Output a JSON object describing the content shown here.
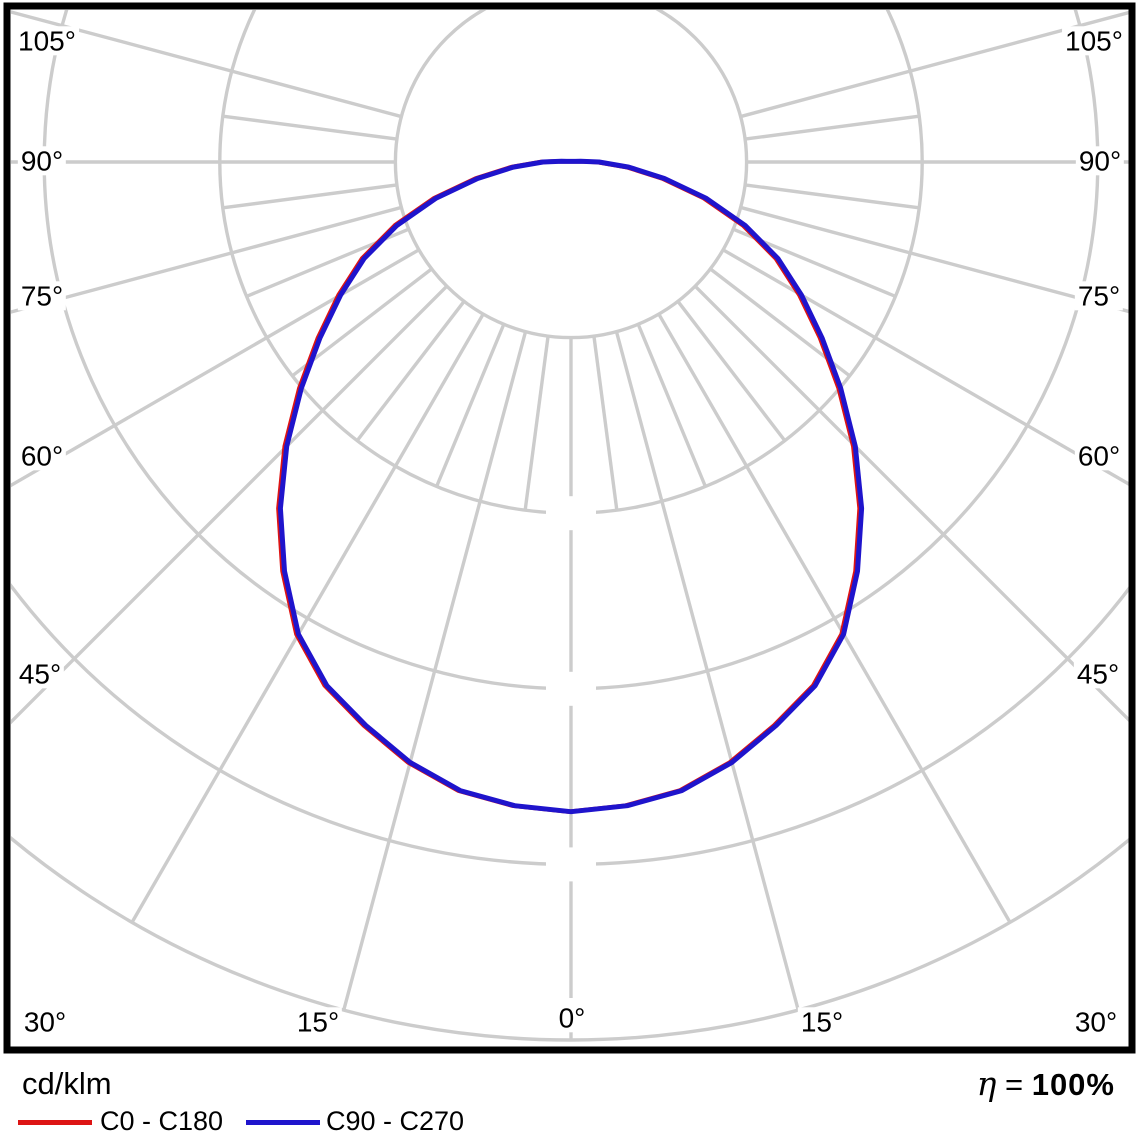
{
  "legend": {
    "unit": "cd/klm",
    "series": [
      {
        "label": "C0 - C180",
        "color": "#dd1414"
      },
      {
        "label": "C90 - C270",
        "color": "#1f14cc"
      }
    ]
  },
  "efficiency": {
    "symbol": "η",
    "equals": "=",
    "value": "100%"
  },
  "axis": {
    "angle_labels": {
      "left": [
        "105°",
        "90°",
        "75°",
        "60°",
        "45°",
        "30°"
      ],
      "right": [
        "105°",
        "90°",
        "75°",
        "60°",
        "45°",
        "30°"
      ],
      "bottom": [
        "15°",
        "0°",
        "15°"
      ]
    }
  },
  "chart_data": {
    "type": "line",
    "coordinate_system": "polar",
    "angle_unit": "deg",
    "zero_direction": "down",
    "symmetric_about_vertical": true,
    "angles_deg": [
      0,
      5,
      10,
      15,
      20,
      25,
      30,
      35,
      40,
      45,
      50,
      55,
      60,
      65,
      70,
      75,
      80,
      85,
      90,
      95,
      97.5
    ],
    "series": [
      {
        "name": "C0 - C180",
        "color": "#dd1414",
        "r_norm": [
          0.74,
          0.736,
          0.727,
          0.708,
          0.683,
          0.658,
          0.621,
          0.569,
          0.515,
          0.458,
          0.401,
          0.349,
          0.303,
          0.26,
          0.211,
          0.159,
          0.108,
          0.066,
          0.032,
          0.011,
          0.005
        ]
      },
      {
        "name": "C90 - C270",
        "color": "#1f14cc",
        "r_norm": [
          0.74,
          0.736,
          0.727,
          0.708,
          0.683,
          0.658,
          0.621,
          0.569,
          0.515,
          0.458,
          0.401,
          0.349,
          0.303,
          0.26,
          0.211,
          0.159,
          0.108,
          0.066,
          0.032,
          0.011,
          0.005
        ]
      }
    ],
    "rings": {
      "count": 5,
      "r_norm": [
        0.2,
        0.4,
        0.6,
        0.8,
        1.0
      ],
      "values_labeled": false,
      "unit": "cd/klm"
    },
    "grid": {
      "major_angle_step_deg": 15,
      "minor_angle_step_deg": 7.5,
      "minor_lines_span": "ring1_to_ring2",
      "angle_label_step_deg": 15,
      "max_labeled_angle_deg": 105,
      "grid_on": true
    },
    "colors": {
      "grid": "#cccccc",
      "background": "#ffffff",
      "border": "#000000"
    }
  }
}
